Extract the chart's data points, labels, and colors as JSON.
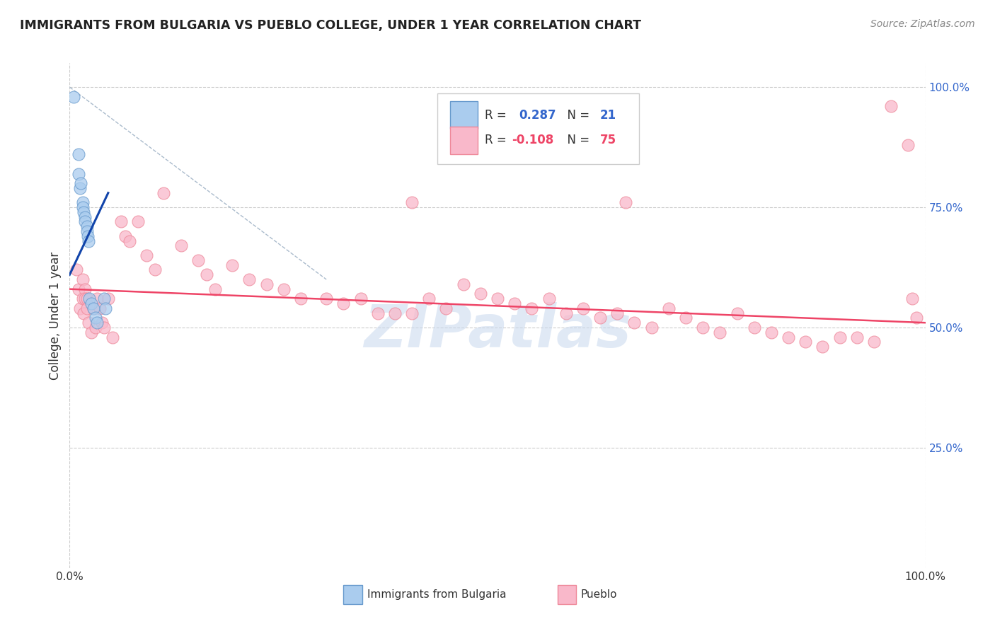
{
  "title": "IMMIGRANTS FROM BULGARIA VS PUEBLO COLLEGE, UNDER 1 YEAR CORRELATION CHART",
  "source": "Source: ZipAtlas.com",
  "ylabel": "College, Under 1 year",
  "xlim": [
    0.0,
    1.0
  ],
  "ylim": [
    0.0,
    1.05
  ],
  "blue_R": "0.287",
  "blue_N": "21",
  "pink_R": "-0.108",
  "pink_N": "75",
  "blue_scatter_x": [
    0.005,
    0.01,
    0.01,
    0.012,
    0.013,
    0.015,
    0.015,
    0.016,
    0.018,
    0.018,
    0.02,
    0.02,
    0.021,
    0.022,
    0.023,
    0.025,
    0.028,
    0.03,
    0.032,
    0.04,
    0.042
  ],
  "blue_scatter_y": [
    0.98,
    0.86,
    0.82,
    0.79,
    0.8,
    0.76,
    0.75,
    0.74,
    0.73,
    0.72,
    0.71,
    0.7,
    0.69,
    0.68,
    0.56,
    0.55,
    0.54,
    0.52,
    0.51,
    0.56,
    0.54
  ],
  "pink_scatter_x": [
    0.008,
    0.01,
    0.012,
    0.015,
    0.015,
    0.016,
    0.018,
    0.018,
    0.02,
    0.02,
    0.022,
    0.025,
    0.028,
    0.03,
    0.032,
    0.035,
    0.038,
    0.04,
    0.045,
    0.05,
    0.06,
    0.065,
    0.07,
    0.08,
    0.09,
    0.1,
    0.11,
    0.13,
    0.15,
    0.16,
    0.17,
    0.19,
    0.21,
    0.23,
    0.25,
    0.27,
    0.3,
    0.32,
    0.34,
    0.36,
    0.38,
    0.4,
    0.42,
    0.44,
    0.46,
    0.48,
    0.5,
    0.52,
    0.54,
    0.56,
    0.58,
    0.6,
    0.62,
    0.64,
    0.66,
    0.68,
    0.7,
    0.72,
    0.74,
    0.76,
    0.78,
    0.8,
    0.82,
    0.84,
    0.86,
    0.88,
    0.9,
    0.92,
    0.94,
    0.96,
    0.98,
    0.985,
    0.99,
    0.4,
    0.65
  ],
  "pink_scatter_y": [
    0.62,
    0.58,
    0.54,
    0.6,
    0.56,
    0.53,
    0.58,
    0.56,
    0.56,
    0.54,
    0.51,
    0.49,
    0.54,
    0.5,
    0.56,
    0.54,
    0.51,
    0.5,
    0.56,
    0.48,
    0.72,
    0.69,
    0.68,
    0.72,
    0.65,
    0.62,
    0.78,
    0.67,
    0.64,
    0.61,
    0.58,
    0.63,
    0.6,
    0.59,
    0.58,
    0.56,
    0.56,
    0.55,
    0.56,
    0.53,
    0.53,
    0.53,
    0.56,
    0.54,
    0.59,
    0.57,
    0.56,
    0.55,
    0.54,
    0.56,
    0.53,
    0.54,
    0.52,
    0.53,
    0.51,
    0.5,
    0.54,
    0.52,
    0.5,
    0.49,
    0.53,
    0.5,
    0.49,
    0.48,
    0.47,
    0.46,
    0.48,
    0.48,
    0.47,
    0.96,
    0.88,
    0.56,
    0.52,
    0.76,
    0.76
  ],
  "blue_trend_x": [
    0.0,
    0.045
  ],
  "blue_trend_y": [
    0.61,
    0.78
  ],
  "pink_trend_x": [
    0.0,
    1.0
  ],
  "pink_trend_y": [
    0.58,
    0.51
  ],
  "ref_line_x": [
    0.0,
    0.3
  ],
  "ref_line_y": [
    1.0,
    0.6
  ],
  "background_color": "#ffffff",
  "grid_color": "#cccccc",
  "title_color": "#222222",
  "source_color": "#888888",
  "blue_color": "#aaccee",
  "pink_color": "#f9b8ca",
  "blue_edge_color": "#6699cc",
  "pink_edge_color": "#ee8899",
  "blue_line_color": "#1144aa",
  "pink_line_color": "#ee4466",
  "watermark_color": "#c8d8ee",
  "watermark_text": "ZIPatlas",
  "legend_blue_label": "Immigrants from Bulgaria",
  "legend_pink_label": "Pueblo"
}
